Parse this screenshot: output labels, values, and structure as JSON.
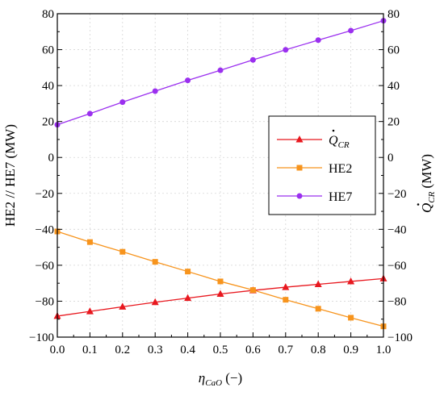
{
  "chart_data": {
    "type": "line",
    "title": "",
    "x": [
      0.0,
      0.1,
      0.2,
      0.3,
      0.4,
      0.5,
      0.6,
      0.7,
      0.8,
      0.9,
      1.0
    ],
    "xlim": [
      0.0,
      1.0
    ],
    "x_ticks": [
      "0.0",
      "0.1",
      "0.2",
      "0.3",
      "0.4",
      "0.5",
      "0.6",
      "0.7",
      "0.8",
      "0.9",
      "1.0"
    ],
    "xlabel": {
      "main": "η",
      "sub": "CaO",
      "suffix": " (−)"
    },
    "ylabel_left": "HE2 // HE7 (MW)",
    "ylabel_right": {
      "main": "Q",
      "sub": "CR",
      "suffix": " (MW)"
    },
    "ylim_left": [
      -100,
      80
    ],
    "ylim_right": [
      -100,
      80
    ],
    "y_ticks_left": [
      "80",
      "60",
      "40",
      "20",
      "0",
      "−20",
      "−40",
      "−60",
      "−80",
      "−100"
    ],
    "y_ticks_right": [
      "80",
      "60",
      "40",
      "20",
      "0",
      "−20",
      "−40",
      "−60",
      "−80",
      "−100"
    ],
    "grid": true,
    "legend_position": "center-right",
    "series": [
      {
        "name": {
          "main": "Q",
          "sub": "CR"
        },
        "axis": "right",
        "color": "#e8181f",
        "marker": "triangle",
        "values": [
          -88.3,
          -85.7,
          -83.1,
          -80.6,
          -78.3,
          -76.0,
          -74.0,
          -72.2,
          -70.6,
          -69.0,
          -67.4
        ]
      },
      {
        "name": "HE2",
        "axis": "left",
        "color": "#f7941d",
        "marker": "square",
        "values": [
          -41.2,
          -47.1,
          -52.5,
          -58.1,
          -63.5,
          -69.0,
          -73.8,
          -79.2,
          -84.2,
          -89.2,
          -94.0
        ]
      },
      {
        "name": "HE7",
        "axis": "left",
        "color": "#9b30ef",
        "marker": "circle",
        "values": [
          18.2,
          24.4,
          30.8,
          36.9,
          42.9,
          48.5,
          54.3,
          59.9,
          65.3,
          70.6,
          76.1
        ]
      }
    ]
  }
}
